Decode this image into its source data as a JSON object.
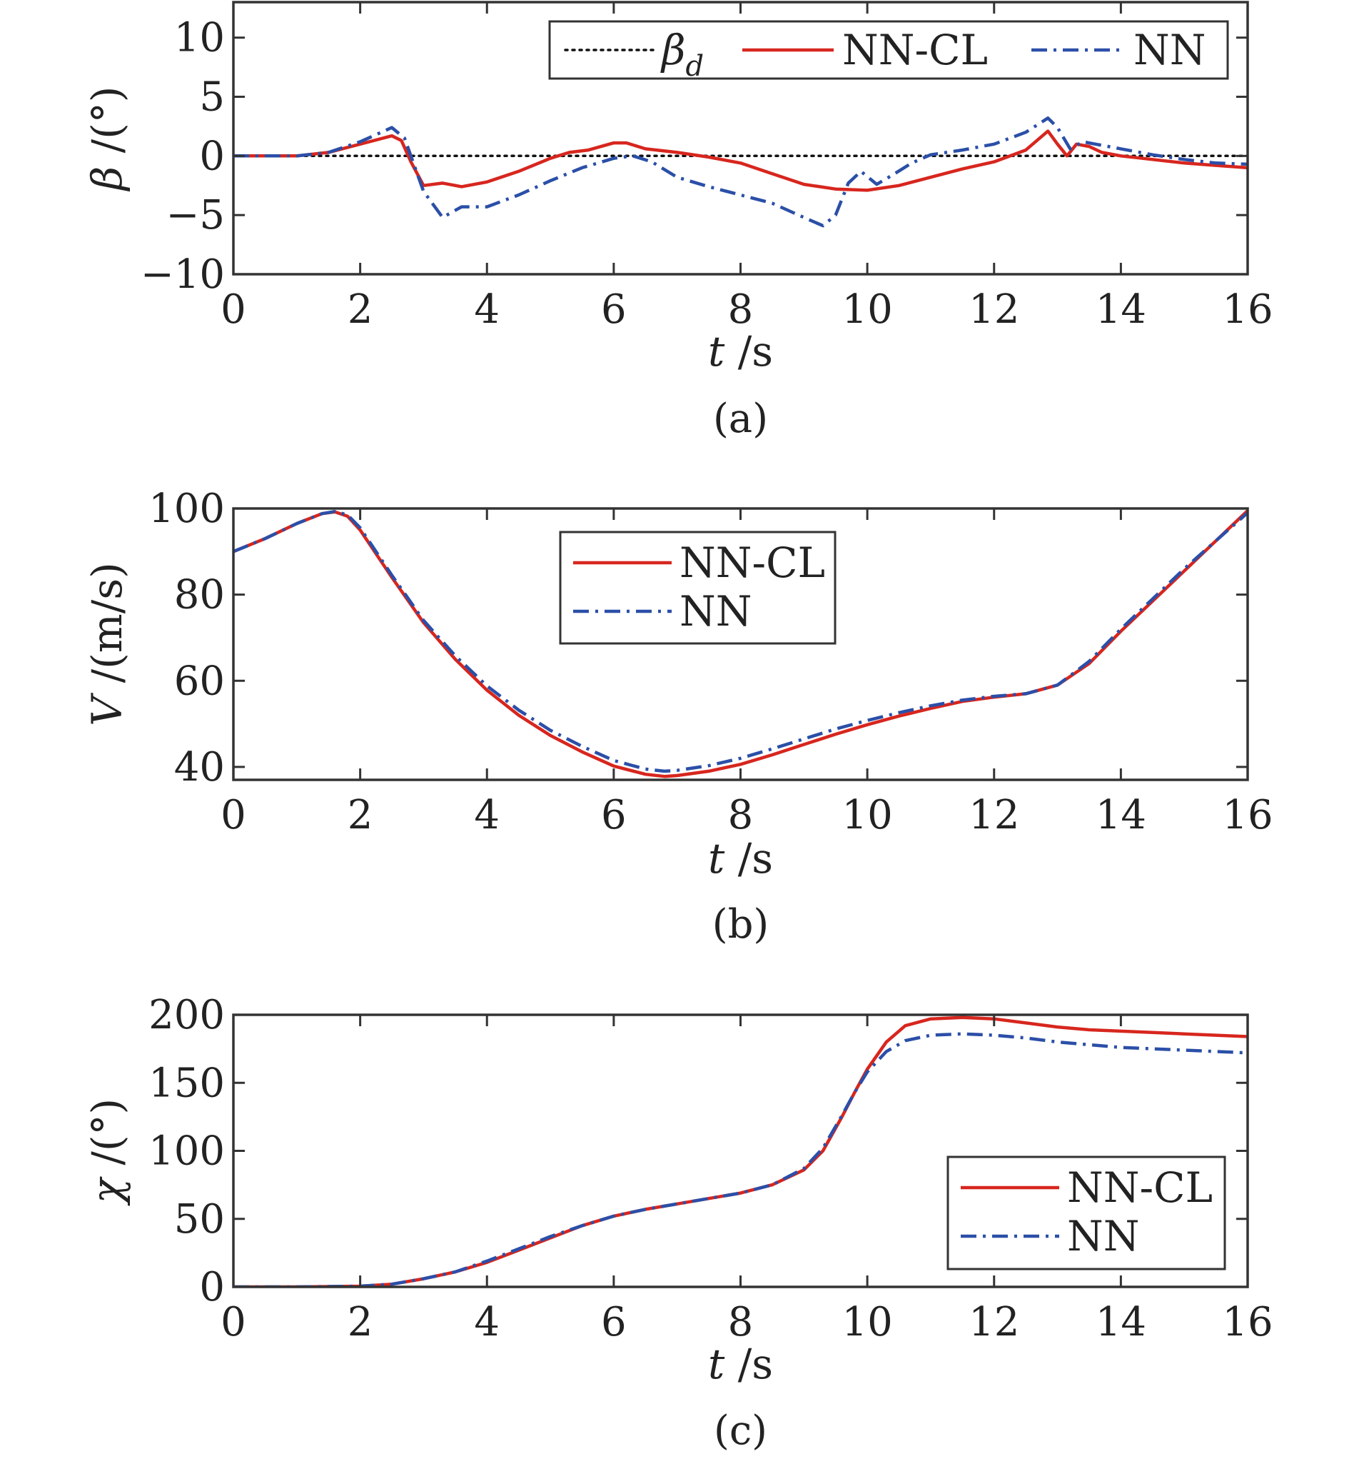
{
  "colors": {
    "nncl": "#d7261e",
    "nn": "#2b4fa8",
    "ref": "#111111",
    "axes": "#333333"
  },
  "chart_data": [
    {
      "type": "line",
      "caption": "(a)",
      "xlabel": {
        "var": "t",
        "unit": " /s"
      },
      "ylabel": {
        "var": "β",
        "unit": " /(°)"
      },
      "xlim": [
        0,
        16
      ],
      "ylim": [
        -10,
        13
      ],
      "xticks": [
        0,
        2,
        4,
        6,
        8,
        10,
        12,
        14,
        16
      ],
      "yticks": [
        -10,
        -5,
        0,
        5,
        10
      ],
      "xtick_labels": [
        "0",
        "2",
        "4",
        "6",
        "8",
        "10",
        "12",
        "14",
        "16"
      ],
      "ytick_labels": [
        "−10",
        "−5",
        "0",
        "5",
        "10"
      ],
      "grid": false,
      "legend": {
        "placement": "top-right",
        "layout": "horizontal",
        "entries": [
          {
            "label": "β",
            "sub": "d",
            "style": "dotted",
            "color": "#111111"
          },
          {
            "label": "NN-CL",
            "style": "solid",
            "color": "#d7261e"
          },
          {
            "label": "NN",
            "style": "dashdot",
            "color": "#2b4fa8"
          }
        ]
      },
      "series": [
        {
          "name": "β",
          "style": "dotted",
          "color": "#111111",
          "x": [
            0,
            16
          ],
          "y": [
            0,
            0
          ]
        },
        {
          "name": "NN-CL",
          "style": "solid",
          "color": "#d7261e",
          "x": [
            0,
            1.0,
            1.5,
            2.0,
            2.5,
            2.65,
            2.8,
            3.0,
            3.3,
            3.6,
            4.0,
            4.5,
            5.0,
            5.3,
            5.6,
            6.0,
            6.2,
            6.5,
            7.0,
            7.5,
            8.0,
            8.5,
            9.0,
            9.5,
            10.0,
            10.5,
            11.0,
            11.5,
            12.0,
            12.5,
            12.85,
            13.0,
            13.15,
            13.3,
            13.5,
            13.7,
            14.0,
            14.5,
            15.0,
            15.5,
            16.0
          ],
          "y": [
            0,
            0,
            0.3,
            1.0,
            1.7,
            1.3,
            -0.5,
            -2.5,
            -2.3,
            -2.6,
            -2.2,
            -1.3,
            -0.2,
            0.3,
            0.5,
            1.1,
            1.1,
            0.6,
            0.3,
            -0.1,
            -0.6,
            -1.5,
            -2.4,
            -2.8,
            -2.9,
            -2.5,
            -1.8,
            -1.1,
            -0.5,
            0.5,
            2.1,
            1.0,
            0.0,
            1.0,
            0.8,
            0.3,
            0.0,
            -0.3,
            -0.6,
            -0.8,
            -1.0
          ]
        },
        {
          "name": "NN",
          "style": "dashdot",
          "color": "#2b4fa8",
          "x": [
            0,
            1.0,
            1.5,
            2.0,
            2.5,
            2.7,
            3.0,
            3.3,
            3.6,
            4.0,
            4.5,
            5.0,
            5.5,
            6.0,
            6.3,
            6.6,
            7.0,
            7.5,
            8.0,
            8.5,
            9.0,
            9.3,
            9.5,
            9.7,
            9.9,
            10.15,
            10.4,
            10.7,
            11.0,
            11.5,
            12.0,
            12.5,
            12.85,
            13.0,
            13.2,
            13.4,
            13.6,
            14.0,
            14.5,
            15.0,
            15.5,
            16.0
          ],
          "y": [
            0,
            0,
            0.3,
            1.2,
            2.4,
            1.5,
            -3.0,
            -5.2,
            -4.3,
            -4.3,
            -3.3,
            -2.1,
            -1.0,
            -0.2,
            0.0,
            -0.5,
            -1.8,
            -2.6,
            -3.3,
            -4.0,
            -5.2,
            -5.9,
            -5.0,
            -2.3,
            -1.3,
            -2.4,
            -1.6,
            -0.6,
            0.1,
            0.5,
            1.0,
            2.0,
            3.2,
            2.4,
            0.6,
            1.2,
            1.0,
            0.6,
            0.1,
            -0.3,
            -0.6,
            -0.7
          ]
        }
      ]
    },
    {
      "type": "line",
      "caption": "(b)",
      "xlabel": {
        "var": "t",
        "unit": " /s"
      },
      "ylabel": {
        "var": "V",
        "unit": " /(m/s)"
      },
      "xlim": [
        0,
        16
      ],
      "ylim": [
        37,
        100
      ],
      "xticks": [
        0,
        2,
        4,
        6,
        8,
        10,
        12,
        14,
        16
      ],
      "yticks": [
        40,
        60,
        80,
        100
      ],
      "xtick_labels": [
        "0",
        "2",
        "4",
        "6",
        "8",
        "10",
        "12",
        "14",
        "16"
      ],
      "ytick_labels": [
        "40",
        "60",
        "80",
        "100"
      ],
      "grid": false,
      "legend": {
        "placement": "top-center",
        "layout": "vertical",
        "entries": [
          {
            "label": "NN-CL",
            "style": "solid",
            "color": "#d7261e"
          },
          {
            "label": "NN",
            "style": "dashdot",
            "color": "#2b4fa8"
          }
        ]
      },
      "series": [
        {
          "name": "NN-CL",
          "style": "solid",
          "color": "#d7261e",
          "x": [
            0,
            0.5,
            1.0,
            1.4,
            1.6,
            1.8,
            2.0,
            2.5,
            3.0,
            3.5,
            4.0,
            4.5,
            5.0,
            5.5,
            6.0,
            6.5,
            6.8,
            7.0,
            7.5,
            8.0,
            8.5,
            9.0,
            9.5,
            10.0,
            10.5,
            11.0,
            11.5,
            12.0,
            12.5,
            13.0,
            13.5,
            14.0,
            14.5,
            15.0,
            15.5,
            16.0
          ],
          "y": [
            90,
            93,
            96.5,
            98.8,
            99.2,
            98.2,
            95,
            84,
            73.5,
            65,
            57.8,
            52,
            47.3,
            43.5,
            40.2,
            38.3,
            37.8,
            38.0,
            39.0,
            40.6,
            42.8,
            45.2,
            47.6,
            49.8,
            51.8,
            53.6,
            55.2,
            56.2,
            57.0,
            59.0,
            64.0,
            71.5,
            78.5,
            85.5,
            92.5,
            99.5
          ]
        },
        {
          "name": "NN",
          "style": "dashdot",
          "color": "#2b4fa8",
          "x": [
            0,
            0.5,
            1.0,
            1.4,
            1.6,
            1.8,
            2.0,
            2.5,
            3.0,
            3.5,
            4.0,
            4.5,
            5.0,
            5.5,
            6.0,
            6.5,
            6.8,
            7.0,
            7.5,
            8.0,
            8.5,
            9.0,
            9.5,
            10.0,
            10.5,
            11.0,
            11.5,
            12.0,
            12.5,
            13.0,
            13.5,
            14.0,
            14.5,
            15.0,
            15.5,
            16.0
          ],
          "y": [
            90,
            93,
            96.5,
            98.8,
            99.3,
            98.5,
            95.5,
            84.5,
            74,
            65.8,
            58.8,
            53.2,
            48.5,
            44.8,
            41.5,
            39.5,
            39.0,
            39.2,
            40.3,
            42.0,
            44.2,
            46.5,
            48.8,
            50.8,
            52.6,
            54.2,
            55.5,
            56.4,
            57.0,
            59.0,
            64.5,
            72.0,
            79.0,
            86.0,
            92.5,
            99.0
          ]
        }
      ]
    },
    {
      "type": "line",
      "caption": "(c)",
      "xlabel": {
        "var": "t",
        "unit": " /s"
      },
      "ylabel": {
        "var": "χ",
        "unit": " /(°)"
      },
      "xlim": [
        0,
        16
      ],
      "ylim": [
        0,
        200
      ],
      "xticks": [
        0,
        2,
        4,
        6,
        8,
        10,
        12,
        14,
        16
      ],
      "yticks": [
        0,
        50,
        100,
        150,
        200
      ],
      "xtick_labels": [
        "0",
        "2",
        "4",
        "6",
        "8",
        "10",
        "12",
        "14",
        "16"
      ],
      "ytick_labels": [
        "0",
        "50",
        "100",
        "150",
        "200"
      ],
      "grid": false,
      "legend": {
        "placement": "bottom-right",
        "layout": "vertical",
        "entries": [
          {
            "label": "NN-CL",
            "style": "solid",
            "color": "#d7261e"
          },
          {
            "label": "NN",
            "style": "dashdot",
            "color": "#2b4fa8"
          }
        ]
      },
      "series": [
        {
          "name": "NN-CL",
          "style": "solid",
          "color": "#d7261e",
          "x": [
            0,
            1.0,
            2.0,
            2.5,
            3.0,
            3.5,
            4.0,
            4.5,
            5.0,
            5.5,
            6.0,
            6.5,
            7.0,
            7.5,
            8.0,
            8.5,
            9.0,
            9.3,
            9.6,
            9.8,
            10.0,
            10.3,
            10.6,
            11.0,
            11.5,
            12.0,
            12.5,
            13.0,
            13.5,
            14.0,
            14.5,
            15.0,
            15.5,
            16.0
          ],
          "y": [
            0,
            0,
            0.5,
            2,
            6,
            11,
            18,
            27,
            36,
            45,
            52,
            57,
            61,
            65,
            69,
            75,
            86,
            100,
            125,
            143,
            160,
            180,
            192,
            197,
            198,
            197,
            194,
            191,
            189,
            188,
            187,
            186,
            185,
            184
          ]
        },
        {
          "name": "NN",
          "style": "dashdot",
          "color": "#2b4fa8",
          "x": [
            0,
            1.0,
            2.0,
            2.5,
            3.0,
            3.5,
            4.0,
            4.5,
            5.0,
            5.5,
            6.0,
            6.5,
            7.0,
            7.5,
            8.0,
            8.5,
            9.0,
            9.3,
            9.6,
            9.8,
            10.0,
            10.3,
            10.6,
            11.0,
            11.5,
            12.0,
            12.5,
            13.0,
            13.5,
            14.0,
            14.5,
            15.0,
            15.5,
            16.0
          ],
          "y": [
            0,
            0,
            0.5,
            2,
            6,
            11,
            19,
            28,
            37,
            45,
            52,
            57,
            61,
            65,
            69,
            75,
            87,
            102,
            126,
            143,
            158,
            173,
            181,
            185,
            186,
            185,
            183,
            180,
            178,
            176,
            175,
            174,
            173,
            172
          ]
        }
      ]
    }
  ]
}
